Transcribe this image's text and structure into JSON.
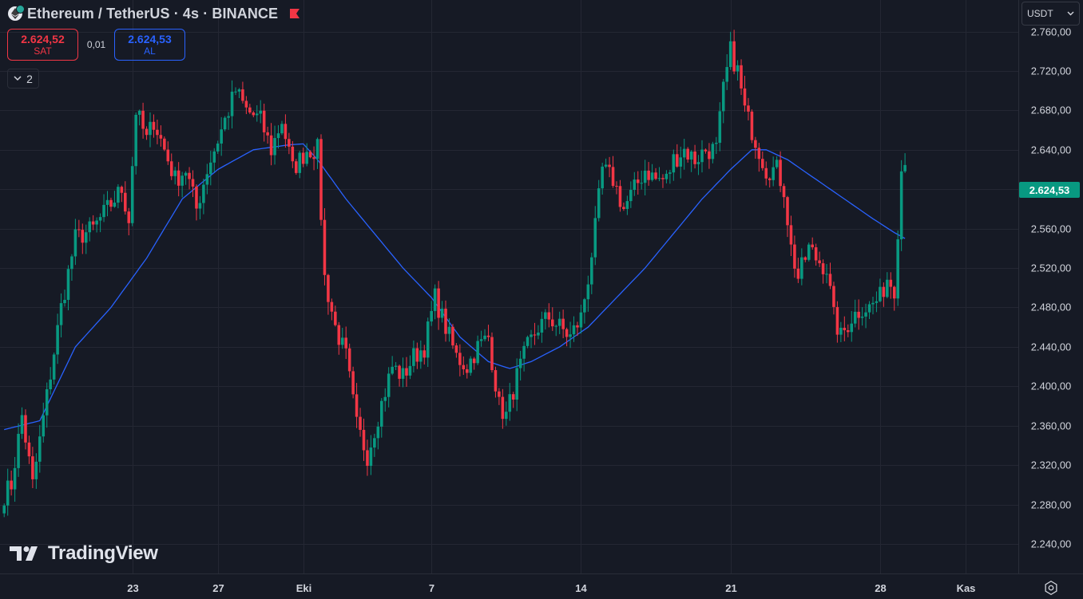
{
  "header": {
    "title": "Ethereum / TetherUS · 4s · BINANCE",
    "icon": "ethereum-icon",
    "flag_icon": "flag-icon"
  },
  "trade": {
    "sell_price": "2.624,52",
    "sell_label": "SAT",
    "spread": "0,01",
    "buy_price": "2.624,53",
    "buy_label": "AL"
  },
  "indicators_toggle": {
    "count": "2"
  },
  "currency": {
    "label": "USDT"
  },
  "last_price": "2.624,53",
  "branding": {
    "logo_text": "TradingView"
  },
  "colors": {
    "background": "#161a25",
    "up": "#089981",
    "down": "#f23645",
    "ma_line": "#2962ff",
    "grid": "#242733",
    "axis_text": "#d1d4dc"
  },
  "chart_data": {
    "type": "candlestick",
    "instrument": "Ethereum / TetherUS",
    "interval": "4s",
    "exchange": "BINANCE",
    "y_ticks": [
      2240,
      2280,
      2320,
      2360,
      2400,
      2440,
      2480,
      2520,
      2560,
      2600,
      2640,
      2680,
      2720,
      2760
    ],
    "y_tick_labels": [
      "2.240,00",
      "2.280,00",
      "2.320,00",
      "2.360,00",
      "2.400,00",
      "2.440,00",
      "2.480,00",
      "2.520,00",
      "2.560,00",
      "2.600,00",
      "2.640,00",
      "2.680,00",
      "2.720,00",
      "2.760,00"
    ],
    "ylim": [
      2210,
      2792
    ],
    "x_ticks": [
      {
        "label": "23",
        "bar": 36
      },
      {
        "label": "27",
        "bar": 60
      },
      {
        "label": "Eki",
        "bar": 84
      },
      {
        "label": "7",
        "bar": 120
      },
      {
        "label": "14",
        "bar": 162
      },
      {
        "label": "21",
        "bar": 204
      },
      {
        "label": "28",
        "bar": 246
      },
      {
        "label": "Kas",
        "bar": 270
      }
    ],
    "keypoints": [
      [
        0,
        2290
      ],
      [
        2,
        2300
      ],
      [
        5,
        2370
      ],
      [
        8,
        2300
      ],
      [
        12,
        2390
      ],
      [
        16,
        2480
      ],
      [
        20,
        2550
      ],
      [
        25,
        2560
      ],
      [
        29,
        2580
      ],
      [
        33,
        2600
      ],
      [
        35,
        2570
      ],
      [
        37,
        2680
      ],
      [
        40,
        2650
      ],
      [
        42,
        2670
      ],
      [
        45,
        2640
      ],
      [
        48,
        2610
      ],
      [
        51,
        2620
      ],
      [
        54,
        2580
      ],
      [
        57,
        2620
      ],
      [
        61,
        2660
      ],
      [
        65,
        2700
      ],
      [
        68,
        2680
      ],
      [
        72,
        2670
      ],
      [
        75,
        2640
      ],
      [
        78,
        2670
      ],
      [
        81,
        2620
      ],
      [
        85,
        2640
      ],
      [
        88,
        2640
      ],
      [
        90,
        2510
      ],
      [
        93,
        2460
      ],
      [
        96,
        2430
      ],
      [
        99,
        2360
      ],
      [
        102,
        2330
      ],
      [
        105,
        2370
      ],
      [
        109,
        2420
      ],
      [
        112,
        2410
      ],
      [
        115,
        2430
      ],
      [
        118,
        2440
      ],
      [
        121,
        2490
      ],
      [
        124,
        2460
      ],
      [
        127,
        2430
      ],
      [
        130,
        2420
      ],
      [
        133,
        2440
      ],
      [
        136,
        2450
      ],
      [
        139,
        2380
      ],
      [
        141,
        2370
      ],
      [
        144,
        2410
      ],
      [
        147,
        2440
      ],
      [
        150,
        2460
      ],
      [
        153,
        2470
      ],
      [
        156,
        2460
      ],
      [
        159,
        2450
      ],
      [
        162,
        2470
      ],
      [
        164,
        2510
      ],
      [
        166,
        2560
      ],
      [
        168,
        2620
      ],
      [
        171,
        2610
      ],
      [
        174,
        2580
      ],
      [
        177,
        2600
      ],
      [
        180,
        2620
      ],
      [
        183,
        2610
      ],
      [
        186,
        2610
      ],
      [
        188,
        2630
      ],
      [
        191,
        2640
      ],
      [
        194,
        2630
      ],
      [
        197,
        2640
      ],
      [
        200,
        2640
      ],
      [
        202,
        2700
      ],
      [
        204,
        2740
      ],
      [
        206,
        2720
      ],
      [
        208,
        2680
      ],
      [
        211,
        2650
      ],
      [
        214,
        2620
      ],
      [
        217,
        2620
      ],
      [
        219,
        2600
      ],
      [
        221,
        2540
      ],
      [
        223,
        2510
      ],
      [
        226,
        2540
      ],
      [
        228,
        2530
      ],
      [
        231,
        2520
      ],
      [
        233,
        2470
      ],
      [
        235,
        2450
      ],
      [
        238,
        2470
      ],
      [
        241,
        2480
      ],
      [
        243,
        2480
      ],
      [
        246,
        2490
      ],
      [
        248,
        2510
      ],
      [
        250,
        2500
      ],
      [
        252,
        2620
      ],
      [
        253,
        2624.53
      ]
    ],
    "ma_series": [
      [
        0,
        2356
      ],
      [
        10,
        2365
      ],
      [
        20,
        2440
      ],
      [
        30,
        2480
      ],
      [
        40,
        2530
      ],
      [
        50,
        2590
      ],
      [
        60,
        2620
      ],
      [
        70,
        2640
      ],
      [
        80,
        2645
      ],
      [
        84,
        2646
      ],
      [
        88,
        2630
      ],
      [
        96,
        2590
      ],
      [
        104,
        2555
      ],
      [
        112,
        2520
      ],
      [
        120,
        2490
      ],
      [
        128,
        2450
      ],
      [
        136,
        2425
      ],
      [
        142,
        2418
      ],
      [
        148,
        2425
      ],
      [
        156,
        2440
      ],
      [
        164,
        2460
      ],
      [
        172,
        2490
      ],
      [
        180,
        2520
      ],
      [
        188,
        2555
      ],
      [
        196,
        2590
      ],
      [
        204,
        2620
      ],
      [
        210,
        2640
      ],
      [
        214,
        2640
      ],
      [
        220,
        2630
      ],
      [
        228,
        2610
      ],
      [
        236,
        2590
      ],
      [
        244,
        2570
      ],
      [
        250,
        2556
      ],
      [
        253,
        2550
      ]
    ],
    "last_price": 2624.53,
    "bars_total": 286
  }
}
